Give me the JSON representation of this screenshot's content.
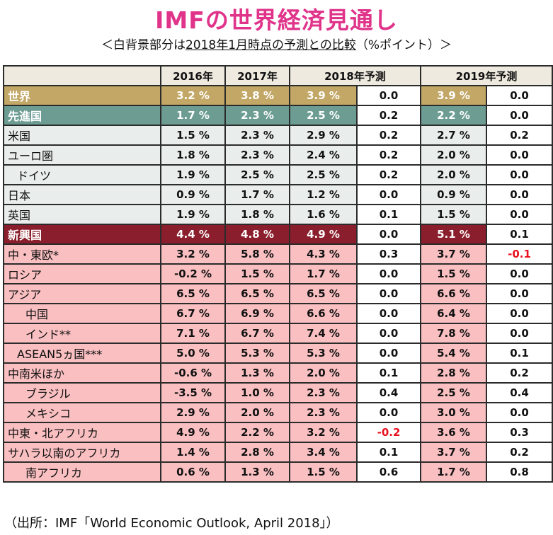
{
  "title": "IMFの世界経済見通し",
  "subtitle_prefix": "＜白背景部分は",
  "subtitle_underlined": "2018年1月時点の予測との比較",
  "subtitle_mid": "（%ポイント",
  "subtitle_suffix": "）＞",
  "headers": [
    "",
    "2016年",
    "2017年",
    "2018年予測",
    "2019年予測"
  ],
  "rows": [
    {
      "name": "世界",
      "group": "world",
      "indent": 0,
      "y2016": "3.2 %",
      "y2017": "3.8 %",
      "y2018": "3.9 %",
      "c2018": "0.0",
      "y2019": "3.9 %",
      "c2019": "0.0"
    },
    {
      "name": "先進国",
      "group": "adv",
      "indent": 0,
      "y2016": "1.7 %",
      "y2017": "2.3 %",
      "y2018": "2.5 %",
      "c2018": "0.2",
      "y2019": "2.2 %",
      "c2019": "0.0"
    },
    {
      "name": "米国",
      "group": "advsub",
      "indent": 0,
      "y2016": "1.5 %",
      "y2017": "2.3 %",
      "y2018": "2.9 %",
      "c2018": "0.2",
      "y2019": "2.7 %",
      "c2019": "0.2"
    },
    {
      "name": "ユーロ圏",
      "group": "advsub",
      "indent": 0,
      "y2016": "1.8 %",
      "y2017": "2.3 %",
      "y2018": "2.4 %",
      "c2018": "0.2",
      "y2019": "2.0 %",
      "c2019": "0.0"
    },
    {
      "name": "ドイツ",
      "group": "advsub",
      "indent": 1,
      "y2016": "1.9 %",
      "y2017": "2.5 %",
      "y2018": "2.5 %",
      "c2018": "0.2",
      "y2019": "2.0 %",
      "c2019": "0.0"
    },
    {
      "name": "日本",
      "group": "advsub",
      "indent": 0,
      "y2016": "0.9 %",
      "y2017": "1.7 %",
      "y2018": "1.2 %",
      "c2018": "0.0",
      "y2019": "0.9 %",
      "c2019": "0.0"
    },
    {
      "name": "英国",
      "group": "advsub",
      "indent": 0,
      "y2016": "1.9 %",
      "y2017": "1.8 %",
      "y2018": "1.6 %",
      "c2018": "0.1",
      "y2019": "1.5 %",
      "c2019": "0.0"
    },
    {
      "name": "新興国",
      "group": "emg",
      "indent": 0,
      "y2016": "4.4 %",
      "y2017": "4.8 %",
      "y2018": "4.9 %",
      "c2018": "0.0",
      "y2019": "5.1 %",
      "c2019": "0.1"
    },
    {
      "name": "中・東欧*",
      "group": "emgsub",
      "indent": 0,
      "y2016": "3.2 %",
      "y2017": "5.8 %",
      "y2018": "4.3 %",
      "c2018": "0.3",
      "y2019": "3.7 %",
      "c2019": "-0.1"
    },
    {
      "name": "ロシア",
      "group": "emgsub",
      "indent": 0,
      "y2016": "-0.2 %",
      "y2017": "1.5 %",
      "y2018": "1.7 %",
      "c2018": "0.0",
      "y2019": "1.5 %",
      "c2019": "0.0"
    },
    {
      "name": "アジア",
      "group": "emgsub",
      "indent": 0,
      "y2016": "6.5 %",
      "y2017": "6.5 %",
      "y2018": "6.5 %",
      "c2018": "0.0",
      "y2019": "6.6 %",
      "c2019": "0.0"
    },
    {
      "name": "中国",
      "group": "emgsub",
      "indent": 2,
      "y2016": "6.7 %",
      "y2017": "6.9 %",
      "y2018": "6.6 %",
      "c2018": "0.0",
      "y2019": "6.4 %",
      "c2019": "0.0"
    },
    {
      "name": "インド**",
      "group": "emgsub",
      "indent": 2,
      "y2016": "7.1 %",
      "y2017": "6.7 %",
      "y2018": "7.4 %",
      "c2018": "0.0",
      "y2019": "7.8 %",
      "c2019": "0.0"
    },
    {
      "name": "ASEAN5ヵ国***",
      "group": "emgsub",
      "indent": 1,
      "y2016": "5.0 %",
      "y2017": "5.3 %",
      "y2018": "5.3 %",
      "c2018": "0.0",
      "y2019": "5.4 %",
      "c2019": "0.1"
    },
    {
      "name": "中南米ほか",
      "group": "emgsub",
      "indent": 0,
      "y2016": "-0.6 %",
      "y2017": "1.3 %",
      "y2018": "2.0 %",
      "c2018": "0.1",
      "y2019": "2.8 %",
      "c2019": "0.2"
    },
    {
      "name": "ブラジル",
      "group": "emgsub",
      "indent": 2,
      "y2016": "-3.5 %",
      "y2017": "1.0 %",
      "y2018": "2.3 %",
      "c2018": "0.4",
      "y2019": "2.5 %",
      "c2019": "0.4"
    },
    {
      "name": "メキシコ",
      "group": "emgsub",
      "indent": 2,
      "y2016": "2.9 %",
      "y2017": "2.0 %",
      "y2018": "2.3 %",
      "c2018": "0.0",
      "y2019": "3.0 %",
      "c2019": "0.0"
    },
    {
      "name": "中東・北アフリカ",
      "group": "emgsub",
      "indent": 0,
      "y2016": "4.9 %",
      "y2017": "2.2 %",
      "y2018": "3.2 %",
      "c2018": "-0.2",
      "y2019": "3.6 %",
      "c2019": "0.3"
    },
    {
      "name": "サハラ以南のアフリカ",
      "group": "emgsub",
      "indent": 0,
      "y2016": "1.4 %",
      "y2017": "2.8 %",
      "y2018": "3.4 %",
      "c2018": "0.1",
      "y2019": "3.7 %",
      "c2019": "0.2"
    },
    {
      "name": "南アフリカ",
      "group": "emgsub",
      "indent": 2,
      "y2016": "0.6 %",
      "y2017": "1.3 %",
      "y2018": "1.5 %",
      "c2018": "0.6",
      "y2019": "1.7 %",
      "c2019": "0.8"
    }
  ],
  "footer": "（出所：IMF「World Economic Outlook, April 2018」）",
  "colors": {
    "title": "#e0338a",
    "world": "#c2a766",
    "advanced": "#6c9c92",
    "advanced_sub": "#e9eeed",
    "emerging": "#8a1e2c",
    "emerging_sub": "#f9bfc1",
    "negative": "#e8101e"
  }
}
